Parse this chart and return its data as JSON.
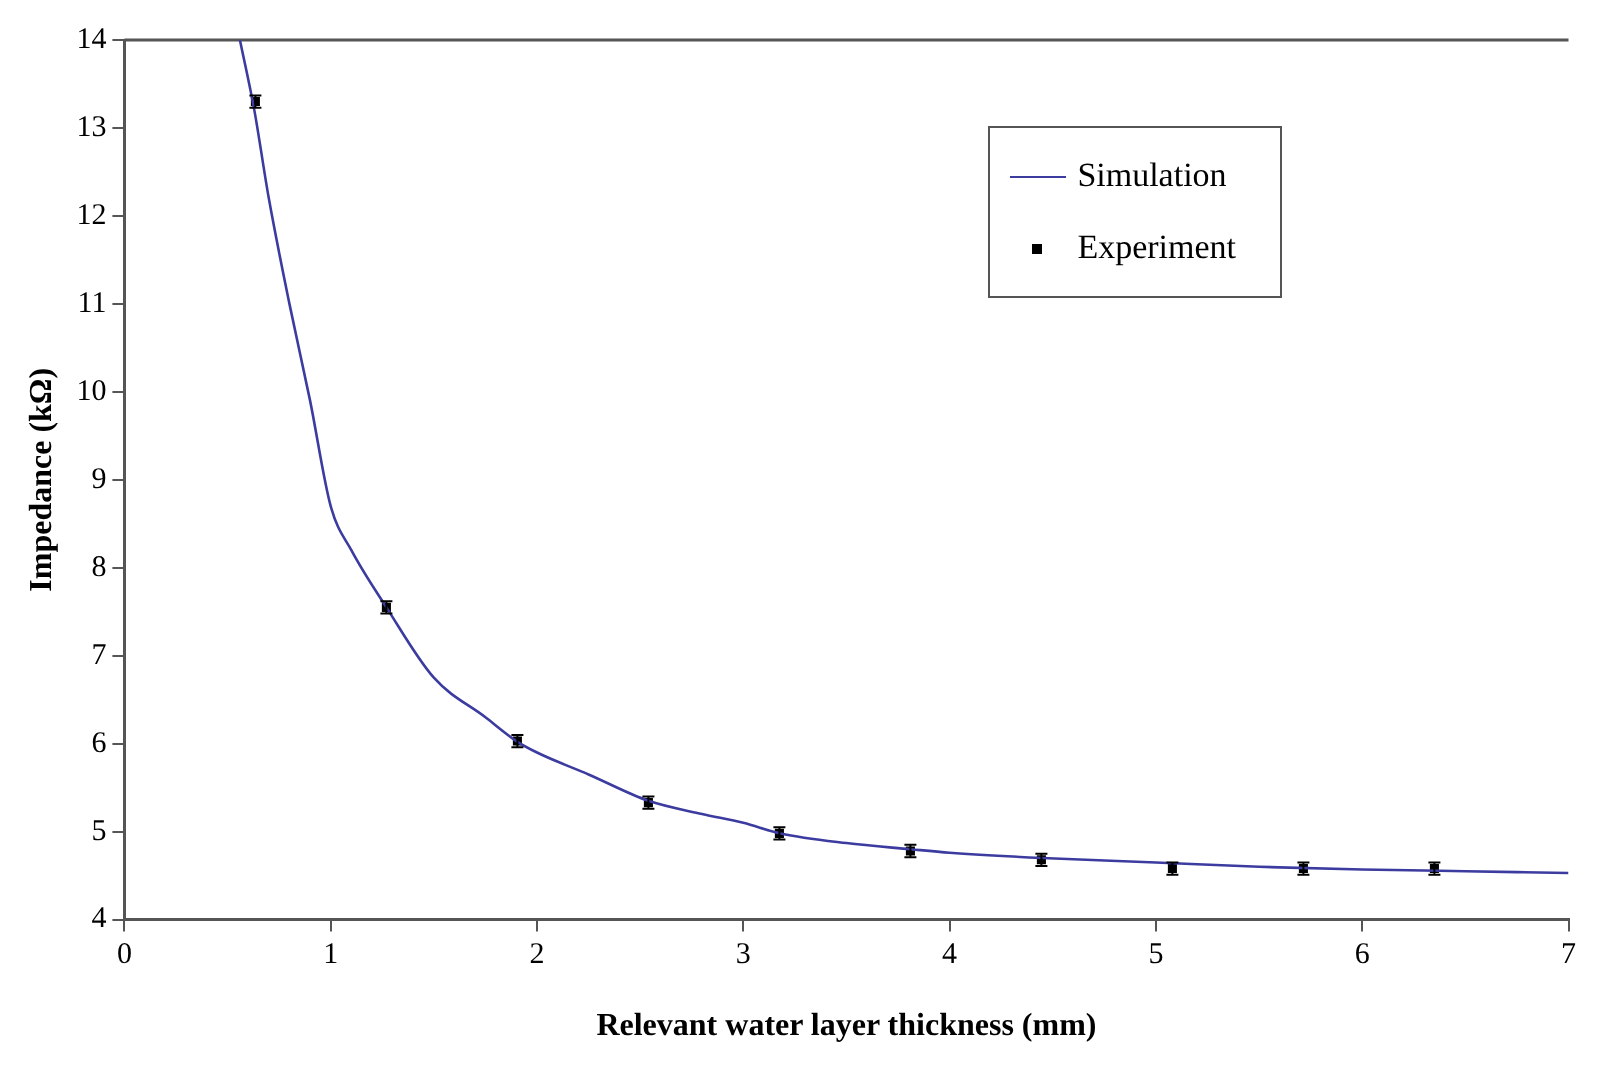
{
  "chart_data": {
    "type": "line",
    "xlabel": "Relevant water layer thickness (mm)",
    "ylabel": "Impedance (kΩ)",
    "xlim": [
      0,
      7
    ],
    "xticks": [
      0,
      1,
      2,
      3,
      4,
      5,
      6,
      7
    ],
    "ylim": [
      4,
      14
    ],
    "yticks": [
      4,
      5,
      6,
      7,
      8,
      9,
      10,
      11,
      12,
      13,
      14
    ],
    "grid": false,
    "legend": "top right",
    "series": [
      {
        "name": "Simulation",
        "type": "line",
        "color": "#3c3ca0",
        "marker": "none",
        "line_style": "solid",
        "x": [
          0.56,
          0.63,
          0.7,
          0.8,
          0.9,
          1.0,
          1.1,
          1.27,
          1.5,
          1.75,
          1.9,
          2.0,
          2.25,
          2.54,
          2.8,
          3.0,
          3.18,
          3.5,
          3.81,
          4.0,
          4.45,
          5.0,
          5.5,
          6.0,
          6.5,
          7.0
        ],
        "values": [
          14,
          13.2,
          12.2,
          11,
          9.9,
          8.7,
          8.2,
          7.55,
          6.75,
          6.3,
          6.03,
          5.9,
          5.65,
          5.35,
          5.2,
          5.1,
          4.98,
          4.87,
          4.8,
          4.76,
          4.7,
          4.65,
          4.6,
          4.57,
          4.55,
          4.53
        ]
      },
      {
        "name": "Experiment",
        "type": "scatter",
        "color": "#000000",
        "marker": "square",
        "x": [
          0.635,
          1.27,
          1.905,
          2.54,
          3.175,
          3.81,
          4.445,
          5.08,
          5.715,
          6.35
        ],
        "values": [
          13.3,
          7.55,
          6.03,
          5.33,
          4.98,
          4.78,
          4.68,
          4.58,
          4.58,
          4.58
        ],
        "errors": [
          0.07,
          0.07,
          0.07,
          0.07,
          0.07,
          0.07,
          0.07,
          0.07,
          0.07,
          0.07
        ]
      }
    ]
  }
}
